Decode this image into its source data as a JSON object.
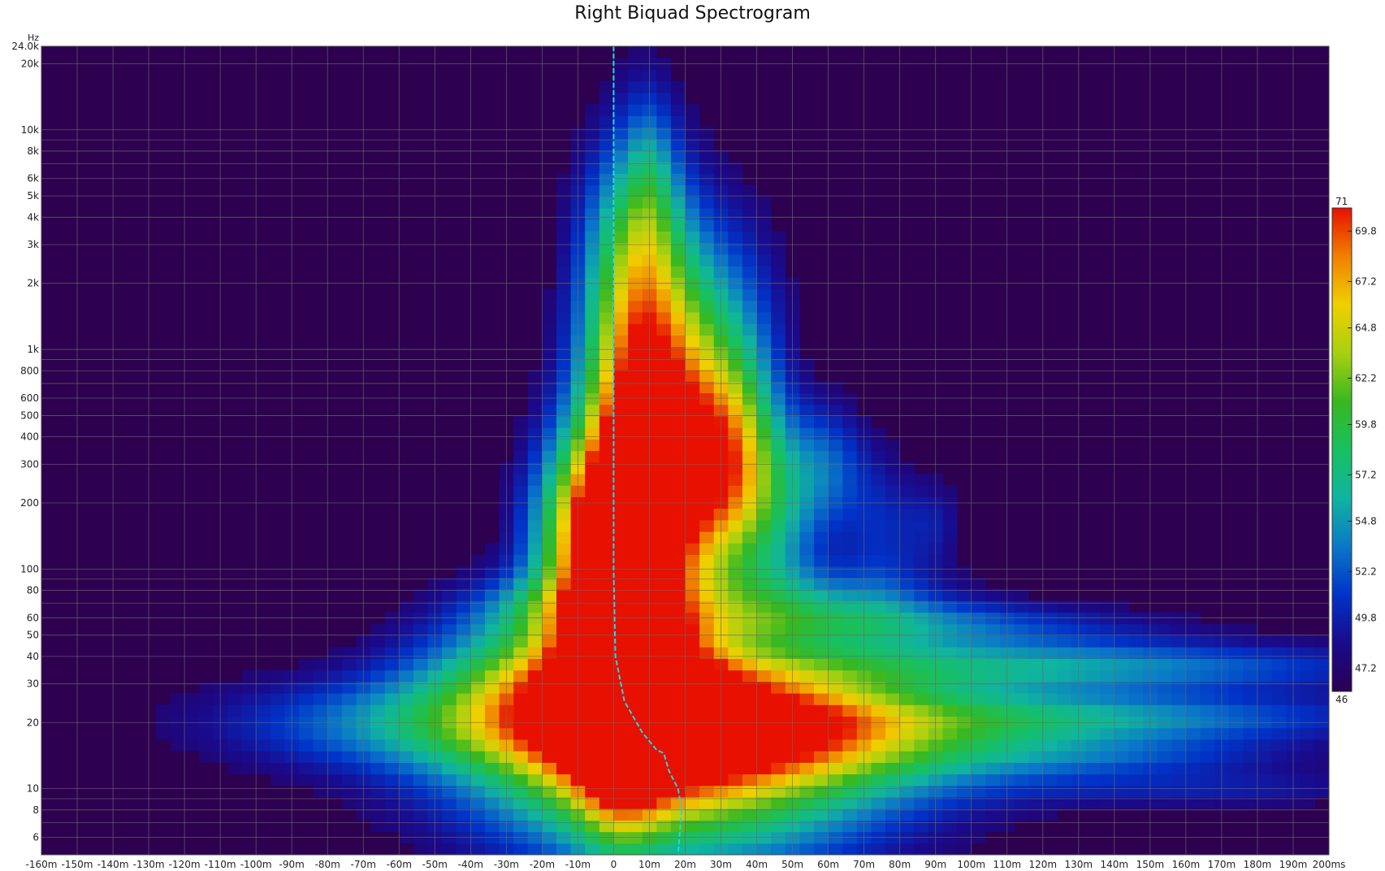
{
  "chart_data": {
    "type": "heatmap",
    "title": "Right Biquad Spectrogram",
    "y_unit_label": "Hz",
    "x_scale": "linear",
    "y_scale": "log",
    "xlim": [
      -0.16,
      0.2
    ],
    "ylim": [
      5,
      24000
    ],
    "grid": true,
    "x_ticks": [
      {
        "v": -0.16,
        "label": "-160m"
      },
      {
        "v": -0.15,
        "label": "-150m"
      },
      {
        "v": -0.14,
        "label": "-140m"
      },
      {
        "v": -0.13,
        "label": "-130m"
      },
      {
        "v": -0.12,
        "label": "-120m"
      },
      {
        "v": -0.11,
        "label": "-110m"
      },
      {
        "v": -0.1,
        "label": "-100m"
      },
      {
        "v": -0.09,
        "label": "-90m"
      },
      {
        "v": -0.08,
        "label": "-80m"
      },
      {
        "v": -0.07,
        "label": "-70m"
      },
      {
        "v": -0.06,
        "label": "-60m"
      },
      {
        "v": -0.05,
        "label": "-50m"
      },
      {
        "v": -0.04,
        "label": "-40m"
      },
      {
        "v": -0.03,
        "label": "-30m"
      },
      {
        "v": -0.02,
        "label": "-20m"
      },
      {
        "v": -0.01,
        "label": "-10m"
      },
      {
        "v": 0,
        "label": "0"
      },
      {
        "v": 0.01,
        "label": "10m"
      },
      {
        "v": 0.02,
        "label": "20m"
      },
      {
        "v": 0.03,
        "label": "30m"
      },
      {
        "v": 0.04,
        "label": "40m"
      },
      {
        "v": 0.05,
        "label": "50m"
      },
      {
        "v": 0.06,
        "label": "60m"
      },
      {
        "v": 0.07,
        "label": "70m"
      },
      {
        "v": 0.08,
        "label": "80m"
      },
      {
        "v": 0.09,
        "label": "90m"
      },
      {
        "v": 0.1,
        "label": "100m"
      },
      {
        "v": 0.11,
        "label": "110m"
      },
      {
        "v": 0.12,
        "label": "120m"
      },
      {
        "v": 0.13,
        "label": "130m"
      },
      {
        "v": 0.14,
        "label": "140m"
      },
      {
        "v": 0.15,
        "label": "150m"
      },
      {
        "v": 0.16,
        "label": "160m"
      },
      {
        "v": 0.17,
        "label": "170m"
      },
      {
        "v": 0.18,
        "label": "180m"
      },
      {
        "v": 0.19,
        "label": "190m"
      },
      {
        "v": 0.2,
        "label": "200ms"
      }
    ],
    "y_ticks": [
      {
        "v": 6,
        "label": "6"
      },
      {
        "v": 8,
        "label": "8"
      },
      {
        "v": 10,
        "label": "10"
      },
      {
        "v": 20,
        "label": "20"
      },
      {
        "v": 30,
        "label": "30"
      },
      {
        "v": 40,
        "label": "40"
      },
      {
        "v": 50,
        "label": "50"
      },
      {
        "v": 60,
        "label": "60"
      },
      {
        "v": 80,
        "label": "80"
      },
      {
        "v": 100,
        "label": "100"
      },
      {
        "v": 200,
        "label": "200"
      },
      {
        "v": 300,
        "label": "300"
      },
      {
        "v": 400,
        "label": "400"
      },
      {
        "v": 500,
        "label": "500"
      },
      {
        "v": 600,
        "label": "600"
      },
      {
        "v": 800,
        "label": "800"
      },
      {
        "v": 1000,
        "label": "1k"
      },
      {
        "v": 2000,
        "label": "2k"
      },
      {
        "v": 3000,
        "label": "3k"
      },
      {
        "v": 4000,
        "label": "4k"
      },
      {
        "v": 5000,
        "label": "5k"
      },
      {
        "v": 6000,
        "label": "6k"
      },
      {
        "v": 8000,
        "label": "8k"
      },
      {
        "v": 10000,
        "label": "10k"
      },
      {
        "v": 20000,
        "label": "20k"
      },
      {
        "v": 24000,
        "label": "24.0k"
      }
    ],
    "y_gridlines": [
      6,
      7,
      8,
      9,
      10,
      20,
      30,
      40,
      50,
      60,
      70,
      80,
      90,
      100,
      200,
      300,
      400,
      500,
      600,
      700,
      800,
      900,
      1000,
      2000,
      3000,
      4000,
      5000,
      6000,
      7000,
      8000,
      9000,
      10000,
      20000
    ],
    "colorbar": {
      "min": 46,
      "max": 71,
      "min_label": "46",
      "max_label": "71",
      "ticks": [
        {
          "v": 47.2,
          "label": "47.2"
        },
        {
          "v": 49.8,
          "label": "49.8"
        },
        {
          "v": 52.2,
          "label": "52.2"
        },
        {
          "v": 54.8,
          "label": "54.8"
        },
        {
          "v": 57.2,
          "label": "57.2"
        },
        {
          "v": 59.8,
          "label": "59.8"
        },
        {
          "v": 62.2,
          "label": "62.2"
        },
        {
          "v": 64.8,
          "label": "64.8"
        },
        {
          "v": 67.2,
          "label": "67.2"
        },
        {
          "v": 69.8,
          "label": "69.8"
        }
      ],
      "colors": [
        "#2a0052",
        "#1a0a8c",
        "#0033c8",
        "#0a78c8",
        "#10b4a0",
        "#18c060",
        "#38b820",
        "#a8d010",
        "#f0d000",
        "#f08000",
        "#e81000"
      ]
    },
    "background_color": "#2d0050",
    "peak_time_curve": {
      "color": "#20d8e8",
      "style": "dashed",
      "points": [
        [
          0,
          24000
        ],
        [
          0,
          3000
        ],
        [
          0,
          1000
        ],
        [
          0,
          300
        ],
        [
          0,
          100
        ],
        [
          0.0005,
          40
        ],
        [
          0.003,
          25
        ],
        [
          0.008,
          18
        ],
        [
          0.012,
          15
        ],
        [
          0.014,
          14.5
        ],
        [
          0.0155,
          12
        ],
        [
          0.018,
          10
        ],
        [
          0.019,
          8
        ],
        [
          0.018,
          5
        ]
      ]
    },
    "regions": [
      {
        "f": 25,
        "t": 0.005,
        "st": 0.018,
        "sf": 0.28,
        "db": 16.5
      },
      {
        "f": 45,
        "t": 0.002,
        "st": 0.008,
        "sf": 0.5,
        "db": 20
      },
      {
        "f": 30,
        "t": -0.02,
        "st": 0.025,
        "sf": 0.25,
        "db": 12
      },
      {
        "f": 22,
        "t": 0.035,
        "st": 0.03,
        "sf": 0.2,
        "db": 13
      },
      {
        "f": 18,
        "t": 0.06,
        "st": 0.06,
        "sf": 0.18,
        "db": 10
      },
      {
        "f": 12,
        "t": 0.02,
        "st": 0.045,
        "sf": 0.3,
        "db": 9
      },
      {
        "f": 8,
        "t": 0.02,
        "st": 0.035,
        "sf": 0.25,
        "db": 6
      },
      {
        "f": 20,
        "t": -0.06,
        "st": 0.04,
        "sf": 0.15,
        "db": 6
      },
      {
        "f": 36,
        "t": 0.12,
        "st": 0.07,
        "sf": 0.08,
        "db": 8
      },
      {
        "f": 21,
        "t": 0.14,
        "st": 0.06,
        "sf": 0.08,
        "db": 6
      },
      {
        "f": 14,
        "t": 0.14,
        "st": 0.04,
        "sf": 0.06,
        "db": 3
      },
      {
        "f": 10,
        "t": 0.17,
        "st": 0.04,
        "sf": 0.06,
        "db": 3
      },
      {
        "f": 55,
        "t": 0.08,
        "st": 0.05,
        "sf": 0.08,
        "db": 6
      },
      {
        "f": 70,
        "t": 0.05,
        "st": 0.03,
        "sf": 0.12,
        "db": 7
      },
      {
        "f": 70,
        "t": -0.02,
        "st": 0.015,
        "sf": 0.1,
        "db": 4
      },
      {
        "f": 120,
        "t": 0.005,
        "st": 0.015,
        "sf": 0.35,
        "db": 12
      },
      {
        "f": 250,
        "t": 0.01,
        "st": 0.015,
        "sf": 0.4,
        "db": 12
      },
      {
        "f": 600,
        "t": 0.005,
        "st": 0.01,
        "sf": 0.5,
        "db": 10
      },
      {
        "f": 1500,
        "t": 0.01,
        "st": 0.012,
        "sf": 0.5,
        "db": 8
      },
      {
        "f": 3000,
        "t": 0.005,
        "st": 0.01,
        "sf": 0.4,
        "db": 6
      },
      {
        "f": 140,
        "t": -0.01,
        "st": 0.01,
        "sf": 0.3,
        "db": 10
      },
      {
        "f": 250,
        "t": 0.025,
        "st": 0.01,
        "sf": 0.35,
        "db": 9
      },
      {
        "f": 350,
        "t": 0.035,
        "st": 0.008,
        "sf": 0.3,
        "db": 8
      },
      {
        "f": 180,
        "t": 0.045,
        "st": 0.01,
        "sf": 0.3,
        "db": 8
      },
      {
        "f": 300,
        "t": 0.06,
        "st": 0.008,
        "sf": 0.2,
        "db": 5
      },
      {
        "f": 150,
        "t": 0.075,
        "st": 0.008,
        "sf": 0.25,
        "db": 4
      },
      {
        "f": 160,
        "t": 0.09,
        "st": 0.006,
        "sf": 0.15,
        "db": 3
      },
      {
        "f": 800,
        "t": 0.02,
        "st": 0.01,
        "sf": 0.4,
        "db": 6
      },
      {
        "f": 1200,
        "t": 0.035,
        "st": 0.01,
        "sf": 0.4,
        "db": 5
      },
      {
        "f": 6000,
        "t": 0.01,
        "st": 0.005,
        "sf": 0.3,
        "db": 4
      }
    ]
  }
}
